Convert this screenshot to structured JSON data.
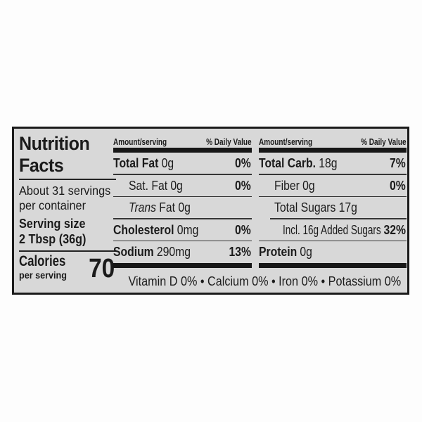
{
  "colors": {
    "panel_bg": "#d8d8d8",
    "ink": "#1b1b1b"
  },
  "panel": {
    "title_line1": "Nutrition",
    "title_line2": "Facts",
    "servings_line1": "About 31 servings",
    "servings_line2": "per container",
    "serving_size_label": "Serving size",
    "serving_size_value": "2 Tbsp (36g)",
    "calories_label": "Calories",
    "calories_sublabel": "per serving",
    "calories_value": "70",
    "header_amount": "Amount/serving",
    "header_dv": "% Daily Value",
    "columns": [
      {
        "rows": [
          {
            "label": "Total Fat",
            "value": "0g",
            "dv": "0%"
          },
          {
            "label": "Sat. Fat",
            "value": "0g",
            "dv": "0%"
          },
          {
            "label": "Trans",
            "value": "Fat 0g",
            "dv": ""
          },
          {
            "label": "Cholesterol",
            "value": "0mg",
            "dv": "0%"
          },
          {
            "label": "Sodium",
            "value": "290mg",
            "dv": "13%"
          }
        ]
      },
      {
        "rows": [
          {
            "label": "Total Carb.",
            "value": "18g",
            "dv": "7%"
          },
          {
            "label": "Fiber",
            "value": "0g",
            "dv": "0%"
          },
          {
            "label": "Total Sugars",
            "value": "17g",
            "dv": ""
          },
          {
            "label": "Incl. 16g Added Sugars",
            "value": "",
            "dv": "32%"
          },
          {
            "label": "Protein",
            "value": "0g",
            "dv": ""
          }
        ]
      }
    ],
    "micronutrients": "Vitamin D 0% • Calcium 0% • Iron 0% • Potassium 0%"
  }
}
